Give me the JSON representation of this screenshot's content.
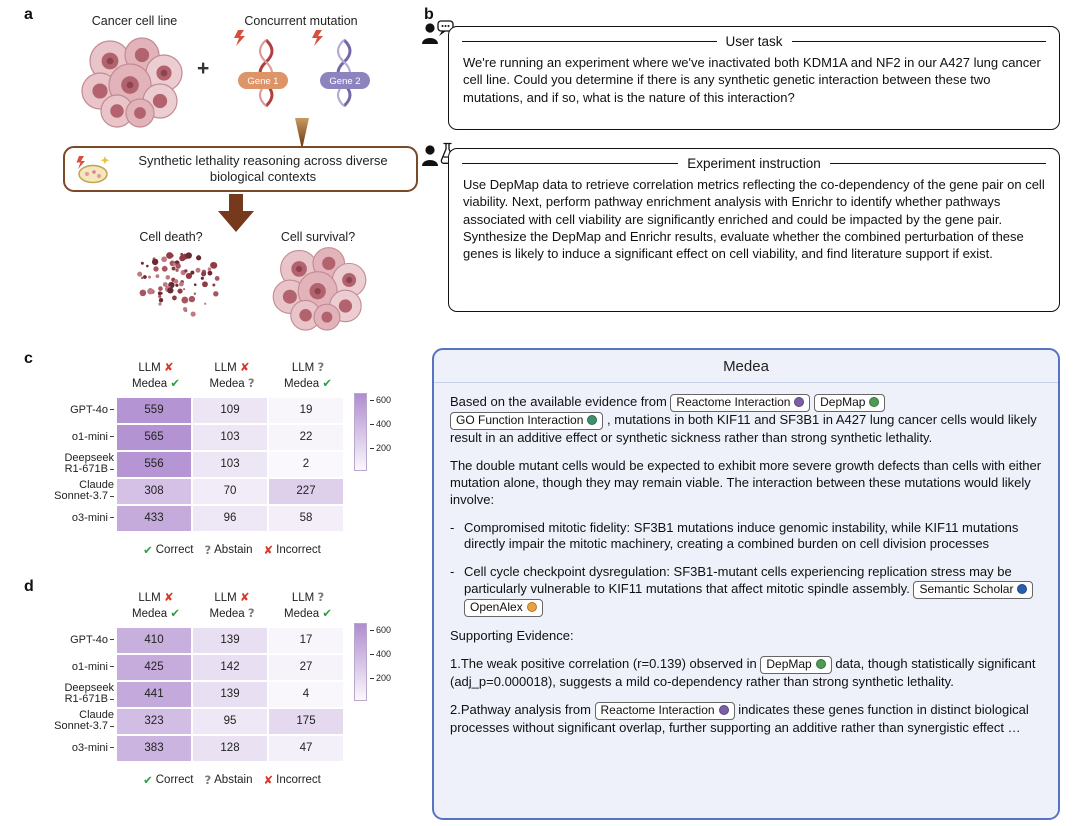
{
  "panel_labels": {
    "a": "a",
    "b": "b",
    "c": "c",
    "d": "d"
  },
  "colors": {
    "heat_low": "#faf8fc",
    "heat_high": "#b08dd0",
    "correct": "#2f9e44",
    "abstain": "#7b7b7b",
    "incorrect": "#d33a2a",
    "medea_border": "#5873c0",
    "medea_background": "#eef1fa",
    "gene1_pill": "#dd9468",
    "gene2_pill": "#8d84bf",
    "arrow_brown": "#76391b"
  },
  "marks": {
    "correct": "✔",
    "abstain": "?",
    "incorrect": "✘"
  },
  "panel_a": {
    "cancer_cell_line": "Cancer cell line",
    "plus": "+",
    "concurrent_mutation": "Concurrent mutation",
    "gene1": "Gene 1",
    "gene2": "Gene 2",
    "reasoning_text": "Synthetic lethality reasoning across diverse biological contexts",
    "cell_death": "Cell death?",
    "cell_survival": "Cell survival?"
  },
  "panel_b": {
    "user_task": {
      "title": "User task",
      "body": "We're running an experiment where we've inactivated both KDM1A and NF2 in our A427 lung cancer cell line. Could you determine if there is any synthetic genetic interaction between these two mutations, and if so, what is the nature of this interaction?"
    },
    "experiment_instruction": {
      "title": "Experiment instruction",
      "body": "Use DepMap data to retrieve correlation metrics reflecting the co-dependency of the gene pair on cell viability. Next, perform pathway enrichment analysis with Enrichr to identify whether pathways associated with cell viability are significantly enriched and could be impacted by the gene pair. Synthesize the DepMap and Enrichr results, evaluate whether the combined perturbation of these genes is likely to induce a significant effect on cell viability, and find literature support if exist."
    }
  },
  "medea": {
    "title": "Medea",
    "chip_icons": {
      "reactome": {
        "name": "reactome-icon",
        "color": "#7b5ea7"
      },
      "depmap": {
        "name": "depmap-icon",
        "color": "#4f9b55"
      },
      "go": {
        "name": "go-function-icon",
        "color": "#3f8f6e"
      },
      "scholar": {
        "name": "semantic-scholar-icon",
        "color": "#2b5fad"
      },
      "openalex": {
        "name": "openalex-icon",
        "color": "#e8a33d"
      }
    },
    "blocks": [
      {
        "type": "p",
        "segments": [
          {
            "text": "Based on the available evidence from "
          },
          {
            "chip": "Reactome Interaction",
            "icon": "reactome"
          },
          {
            "text": " "
          },
          {
            "chip": "DepMap",
            "icon": "depmap"
          },
          {
            "text": " "
          },
          {
            "chip": "GO Function Interaction",
            "icon": "go"
          },
          {
            "text": " , mutations in both KIF11 and SF3B1 in A427 lung cancer cells would likely result in an additive effect or synthetic sickness rather than strong synthetic lethality."
          }
        ]
      },
      {
        "type": "p",
        "segments": [
          {
            "text": "The double mutant cells would be expected to exhibit more severe growth defects than cells with either mutation alone, though they may remain viable. The interaction between these mutations would likely involve:"
          }
        ]
      },
      {
        "type": "li",
        "segments": [
          {
            "text": "Compromised mitotic fidelity: SF3B1 mutations induce genomic instability, while KIF11 mutations directly impair the mitotic machinery, creating a combined burden on cell division processes"
          }
        ]
      },
      {
        "type": "li",
        "segments": [
          {
            "text": "Cell cycle checkpoint dysregulation: SF3B1-mutant cells experiencing replication stress may be particularly vulnerable to KIF11 mutations that affect mitotic spindle assembly. "
          },
          {
            "chip": "Semantic Scholar",
            "icon": "scholar"
          },
          {
            "text": " "
          },
          {
            "chip": "OpenAlex",
            "icon": "openalex"
          }
        ]
      },
      {
        "type": "p",
        "segments": [
          {
            "text": "Supporting Evidence:"
          }
        ]
      },
      {
        "type": "ol",
        "num": "1.",
        "segments": [
          {
            "text": "The weak positive correlation (r=0.139) observed in "
          },
          {
            "chip": "DepMap",
            "icon": "depmap"
          },
          {
            "text": " data, though statistically significant (adj_p=0.000018), suggests a mild co-dependency rather than strong synthetic lethality."
          }
        ]
      },
      {
        "type": "ol",
        "num": "2.",
        "segments": [
          {
            "text": "Pathway analysis from "
          },
          {
            "chip": "Reactome Interaction",
            "icon": "reactome"
          },
          {
            "text": " indicates these genes function in distinct biological processes without significant overlap, further supporting an additive rather than synergistic effect …"
          }
        ]
      }
    ]
  },
  "chart_data": [
    {
      "type": "heatmap",
      "panel": "c",
      "columns": [
        {
          "top": "LLM",
          "top_mark": "incorrect",
          "bottom": "Medea",
          "bottom_mark": "correct"
        },
        {
          "top": "LLM",
          "top_mark": "incorrect",
          "bottom": "Medea",
          "bottom_mark": "abstain"
        },
        {
          "top": "LLM",
          "top_mark": "abstain",
          "bottom": "Medea",
          "bottom_mark": "correct"
        }
      ],
      "rows": [
        "GPT-4o",
        "o1-mini",
        "Deepseek\nR1-671B",
        "Claude\nSonnet-3.7",
        "o3-mini"
      ],
      "values": [
        [
          559,
          109,
          19
        ],
        [
          565,
          103,
          22
        ],
        [
          556,
          103,
          2
        ],
        [
          308,
          70,
          227
        ],
        [
          433,
          96,
          58
        ]
      ],
      "scale_max": 600,
      "colorbar_max": 650,
      "colorbar_ticks": [
        600,
        400,
        200
      ],
      "legend": [
        {
          "mark": "correct",
          "label": "Correct"
        },
        {
          "mark": "abstain",
          "label": "Abstain"
        },
        {
          "mark": "incorrect",
          "label": "Incorrect"
        }
      ]
    },
    {
      "type": "heatmap",
      "panel": "d",
      "columns": [
        {
          "top": "LLM",
          "top_mark": "incorrect",
          "bottom": "Medea",
          "bottom_mark": "correct"
        },
        {
          "top": "LLM",
          "top_mark": "incorrect",
          "bottom": "Medea",
          "bottom_mark": "abstain"
        },
        {
          "top": "LLM",
          "top_mark": "abstain",
          "bottom": "Medea",
          "bottom_mark": "correct"
        }
      ],
      "rows": [
        "GPT-4o",
        "o1-mini",
        "Deepseek\nR1-671B",
        "Claude\nSonnet-3.7",
        "o3-mini"
      ],
      "values": [
        [
          410,
          139,
          17
        ],
        [
          425,
          142,
          27
        ],
        [
          441,
          139,
          4
        ],
        [
          323,
          95,
          175
        ],
        [
          383,
          128,
          47
        ]
      ],
      "scale_max": 600,
      "colorbar_max": 650,
      "colorbar_ticks": [
        600,
        400,
        200
      ],
      "legend": [
        {
          "mark": "correct",
          "label": "Correct"
        },
        {
          "mark": "abstain",
          "label": "Abstain"
        },
        {
          "mark": "incorrect",
          "label": "Incorrect"
        }
      ]
    }
  ]
}
